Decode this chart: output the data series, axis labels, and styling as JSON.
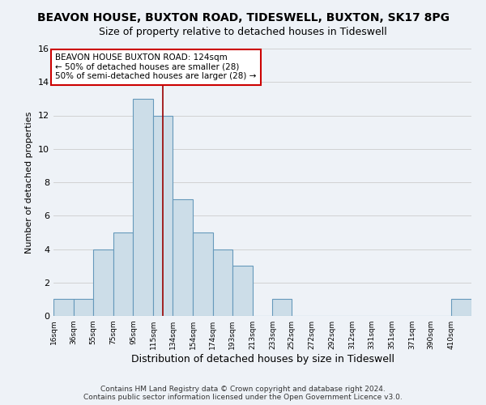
{
  "title": "BEAVON HOUSE, BUXTON ROAD, TIDESWELL, BUXTON, SK17 8PG",
  "subtitle": "Size of property relative to detached houses in Tideswell",
  "xlabel": "Distribution of detached houses by size in Tideswell",
  "ylabel": "Number of detached properties",
  "bar_heights": [
    1,
    1,
    4,
    5,
    13,
    12,
    7,
    5,
    4,
    3,
    0,
    1,
    0,
    0,
    0,
    0,
    0,
    0,
    0,
    0,
    1
  ],
  "bin_labels": [
    "16sqm",
    "36sqm",
    "55sqm",
    "75sqm",
    "95sqm",
    "115sqm",
    "134sqm",
    "154sqm",
    "174sqm",
    "193sqm",
    "213sqm",
    "233sqm",
    "252sqm",
    "272sqm",
    "292sqm",
    "312sqm",
    "331sqm",
    "351sqm",
    "371sqm",
    "390sqm",
    "410sqm"
  ],
  "bin_edges": [
    16,
    36,
    55,
    75,
    95,
    115,
    134,
    154,
    174,
    193,
    213,
    233,
    252,
    272,
    292,
    312,
    331,
    351,
    371,
    390,
    410,
    430
  ],
  "bar_color": "#ccdde8",
  "bar_edgecolor": "#6699bb",
  "bar_linewidth": 0.8,
  "grid_color": "#cccccc",
  "vline_x": 124,
  "vline_color": "#990000",
  "vline_linewidth": 1.2,
  "annotation_text": "BEAVON HOUSE BUXTON ROAD: 124sqm\n← 50% of detached houses are smaller (28)\n50% of semi-detached houses are larger (28) →",
  "annotation_box_edgecolor": "#cc0000",
  "annotation_box_facecolor": "#ffffff",
  "annotation_fontsize": 7.5,
  "ylim": [
    0,
    16
  ],
  "yticks": [
    0,
    2,
    4,
    6,
    8,
    10,
    12,
    14,
    16
  ],
  "footer_text": "Contains HM Land Registry data © Crown copyright and database right 2024.\nContains public sector information licensed under the Open Government Licence v3.0.",
  "title_fontsize": 10,
  "subtitle_fontsize": 9,
  "xlabel_fontsize": 9,
  "ylabel_fontsize": 8,
  "footer_fontsize": 6.5,
  "background_color": "#eef2f7"
}
